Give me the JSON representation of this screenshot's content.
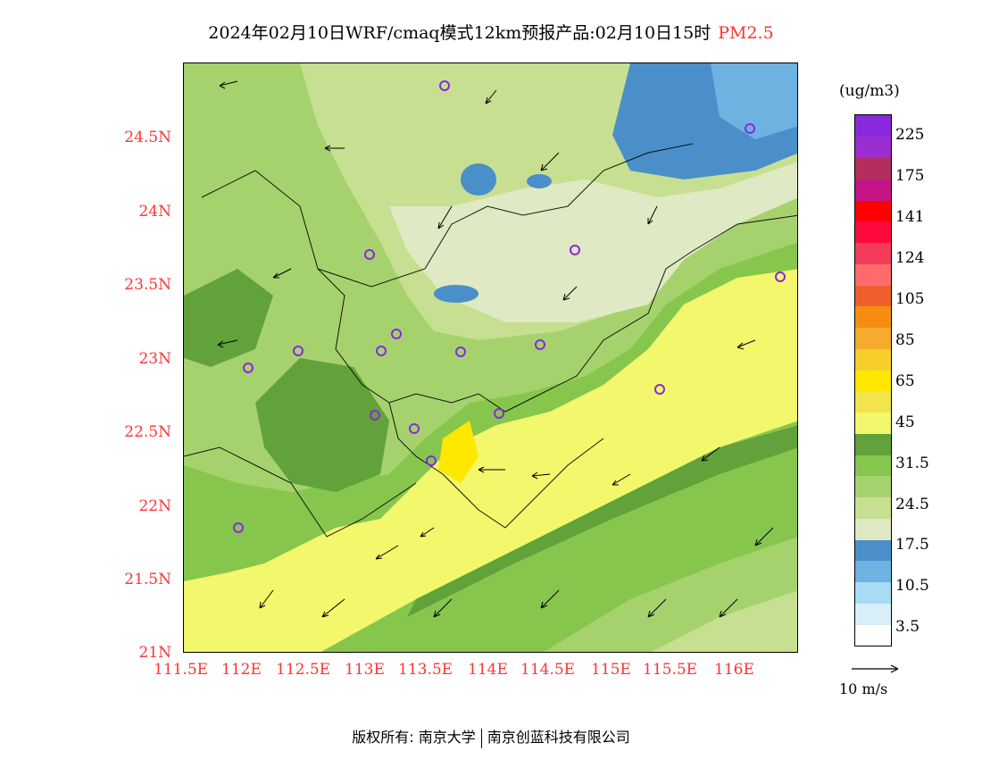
{
  "title": {
    "main": "2024年02月10日WRF/cmaq模式12km预报产品:02月10日15时",
    "pollutant": "PM2.5"
  },
  "axes": {
    "y_labels": [
      "24.5N",
      "24N",
      "23.5N",
      "23N",
      "22.5N",
      "22N",
      "21.5N",
      "21N"
    ],
    "x_labels": [
      "111.5E",
      "112E",
      "112.5E",
      "113E",
      "113.5E",
      "114E",
      "114.5E",
      "115E",
      "115.5E",
      "116E"
    ]
  },
  "legend": {
    "unit": "(ug/m3)",
    "colors": [
      "#ffffff",
      "#d8eff9",
      "#a7dcf4",
      "#6db2e0",
      "#4a8fc9",
      "#dfe9c3",
      "#c6df90",
      "#a6d26e",
      "#86c64d",
      "#62a23a",
      "#f2f76c",
      "#f1e44d",
      "#ffe800",
      "#f6cf2a",
      "#f5ab2b",
      "#f78d10",
      "#ef5f2e",
      "#ff6b6b",
      "#f43c5a",
      "#ff0a3c",
      "#ff0000",
      "#c41586",
      "#b32e5f",
      "#9b2ed0",
      "#8a28de"
    ],
    "labels": [
      "3.5",
      "10.5",
      "17.5",
      "24.5",
      "31.5",
      "45",
      "65",
      "85",
      "105",
      "124",
      "141",
      "175",
      "225"
    ]
  },
  "wind_legend": "10 m/s",
  "footer": {
    "left": "版权所有: 南京大学",
    "right": "南京创蓝科技有限公司"
  }
}
